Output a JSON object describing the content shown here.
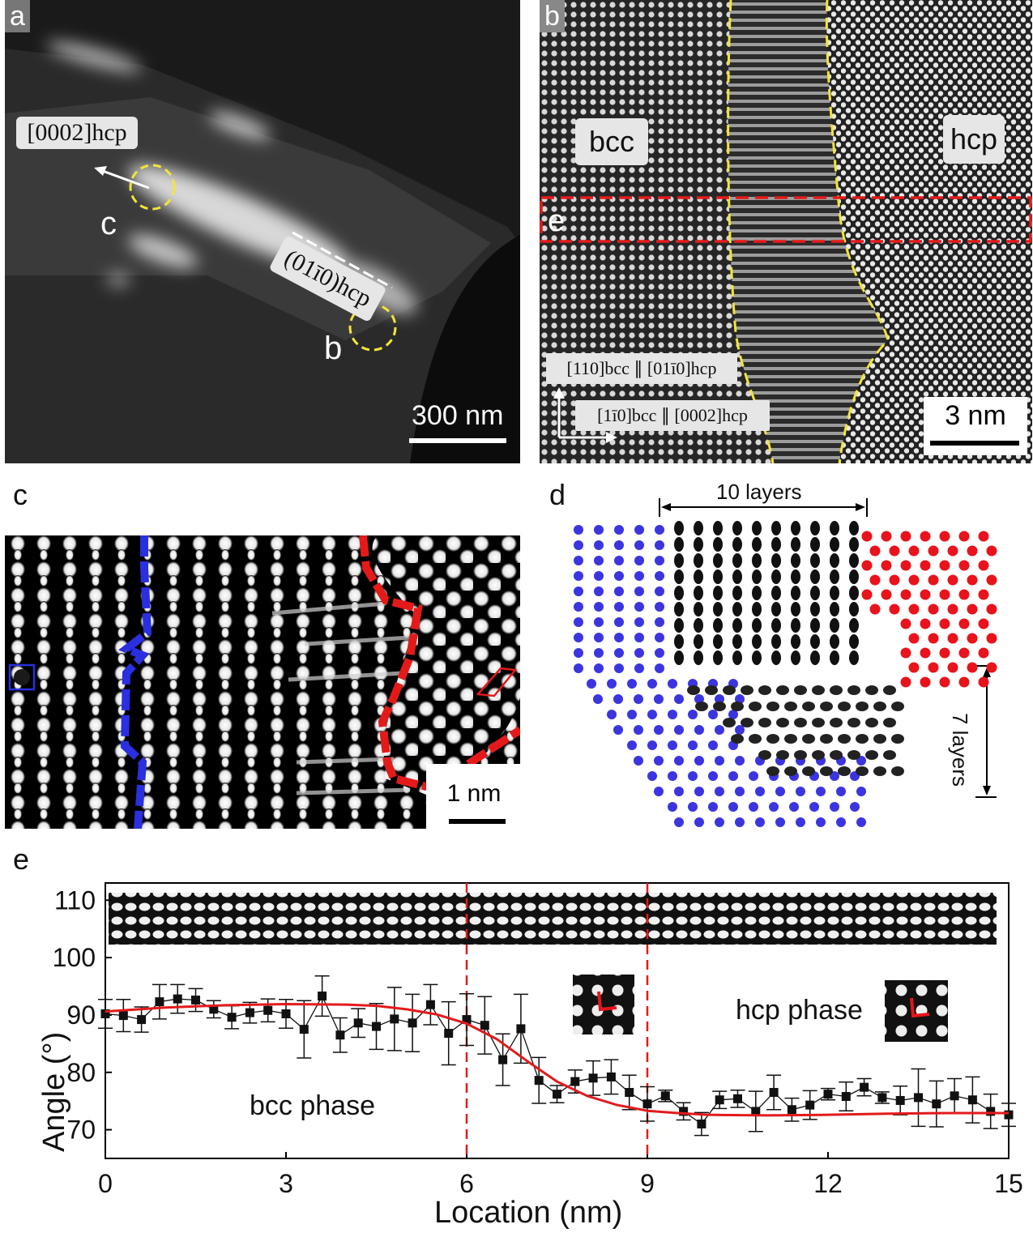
{
  "panel_a": {
    "label": "a",
    "direction_label": "[0002]hcp",
    "plane_label": "(01ī0)hcp",
    "marker_c": "c",
    "marker_b": "b",
    "scale_bar": "300 nm"
  },
  "panel_b": {
    "label": "b",
    "phase_left": "bcc",
    "phase_right": "hcp",
    "region_e": "e",
    "orient_1": "[110]bcc ∥ [01ī0]hcp",
    "orient_2": "[1ī0]bcc ∥ [0002]hcp",
    "scale_bar": "3 nm"
  },
  "panel_c": {
    "label": "c",
    "scale_bar": "1 nm"
  },
  "panel_d": {
    "label": "d",
    "top_annotation": "10 layers",
    "side_annotation": "7 layers"
  },
  "panel_e": {
    "label": "e",
    "annotations": {
      "hcp": "hcp phase",
      "bcc": "bcc phase"
    }
  },
  "colors": {
    "dashed_yellow": "#f2e43a",
    "dashed_red": "#e41a1a",
    "bcc_blue": "#3b35e0",
    "hcp_red": "#e8131b",
    "fit_line": "#e31a1c"
  },
  "chart_data": {
    "type": "scatter",
    "xlabel": "Location (nm)",
    "ylabel": "Angle (°)",
    "xlim": [
      0,
      15
    ],
    "ylim": [
      65,
      113
    ],
    "xticks": [
      0,
      3,
      6,
      9,
      12,
      15
    ],
    "yticks": [
      70,
      80,
      90,
      100,
      110
    ],
    "vlines": [
      6,
      9
    ],
    "series": [
      {
        "x": [
          0.0,
          0.3,
          0.6,
          0.9,
          1.2,
          1.5,
          1.8,
          2.1,
          2.4,
          2.7,
          3.0,
          3.3,
          3.6,
          3.9,
          4.2,
          4.5,
          4.8,
          5.1,
          5.4,
          5.7,
          6.0,
          6.3,
          6.6,
          6.9,
          7.2,
          7.5,
          7.8,
          8.1,
          8.4,
          8.7,
          9.0,
          9.3,
          9.6,
          9.9,
          10.2,
          10.5,
          10.8,
          11.1,
          11.4,
          11.7,
          12.0,
          12.3,
          12.6,
          12.9,
          13.2,
          13.5,
          13.8,
          14.1,
          14.4,
          14.7,
          15.0
        ],
        "y": [
          90.2,
          89.9,
          89.2,
          92.3,
          92.8,
          92.6,
          91.0,
          89.6,
          90.4,
          90.8,
          90.2,
          87.5,
          93.3,
          86.5,
          88.6,
          88.0,
          89.3,
          88.6,
          91.8,
          86.8,
          89.2,
          88.2,
          82.2,
          87.6,
          78.6,
          76.2,
          78.4,
          79.0,
          79.2,
          76.5,
          74.5,
          75.9,
          73.2,
          71.0,
          75.2,
          75.4,
          73.2,
          76.5,
          73.5,
          74.3,
          76.2,
          75.8,
          77.4,
          75.6,
          75.1,
          75.6,
          74.5,
          75.9,
          75.2,
          73.2,
          72.6
        ],
        "err": [
          2.5,
          2.8,
          2.2,
          3.0,
          2.5,
          2.0,
          1.5,
          2.0,
          1.8,
          2.0,
          2.5,
          5.0,
          3.5,
          3.0,
          2.5,
          4.0,
          5.5,
          5.0,
          3.5,
          5.5,
          4.5,
          5.0,
          4.5,
          6.0,
          4.0,
          1.5,
          2.0,
          3.0,
          3.0,
          3.0,
          3.0,
          1.0,
          1.5,
          2.0,
          1.5,
          1.5,
          3.5,
          3.0,
          2.0,
          2.5,
          1.0,
          2.5,
          1.5,
          1.0,
          2.5,
          5.0,
          4.0,
          3.0,
          4.0,
          3.0,
          2.0
        ]
      },
      {
        "type": "line",
        "x": [
          0,
          1,
          2,
          3,
          4,
          4.5,
          5,
          5.5,
          6,
          6.5,
          7,
          7.5,
          8,
          8.5,
          9,
          9.5,
          10,
          11,
          12,
          13,
          14,
          15
        ],
        "y": [
          90.6,
          91.3,
          91.7,
          91.9,
          91.8,
          91.6,
          91.0,
          90.1,
          88.5,
          85.8,
          82.0,
          78.4,
          75.9,
          74.3,
          73.3,
          72.9,
          72.6,
          72.5,
          72.6,
          72.8,
          72.9,
          72.9
        ]
      }
    ]
  }
}
